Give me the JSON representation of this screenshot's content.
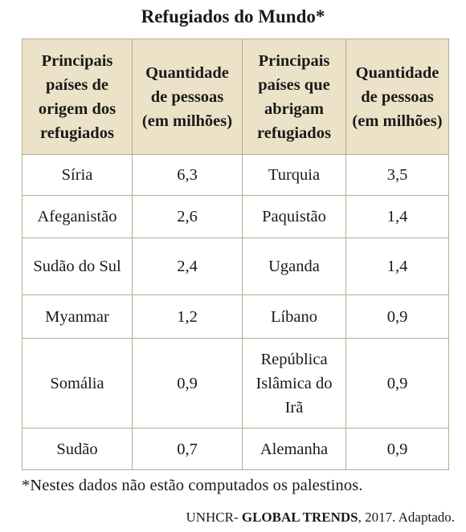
{
  "title": "Refugiados do Mundo*",
  "headers": {
    "origin": "Principais países de origem dos refugiados",
    "origin_qty": "Quantidade de pessoas (em milhões)",
    "host": "Principais países que abrigam refugiados",
    "host_qty": "Quantidade de pessoas (em milhões)"
  },
  "rows": [
    {
      "origin": "Síria",
      "origin_qty": "6,3",
      "host": "Turquia",
      "host_qty": "3,5"
    },
    {
      "origin": "Afeganistão",
      "origin_qty": "2,6",
      "host": "Paquistão",
      "host_qty": "1,4"
    },
    {
      "origin": "Sudão do Sul",
      "origin_qty": "2,4",
      "host": "Uganda",
      "host_qty": "1,4"
    },
    {
      "origin": "Myanmar",
      "origin_qty": "1,2",
      "host": "Líbano",
      "host_qty": "0,9"
    },
    {
      "origin": "Somália",
      "origin_qty": "0,9",
      "host": "República Islâmica do Irã",
      "host_qty": "0,9"
    },
    {
      "origin": "Sudão",
      "origin_qty": "0,7",
      "host": "Alemanha",
      "host_qty": "0,9"
    }
  ],
  "note": "*Nestes dados não estão computados os palestinos.",
  "source": {
    "prefix": "UNHCR- ",
    "bold": "GLOBAL TRENDS",
    "suffix": ", 2017. Adaptado."
  }
}
